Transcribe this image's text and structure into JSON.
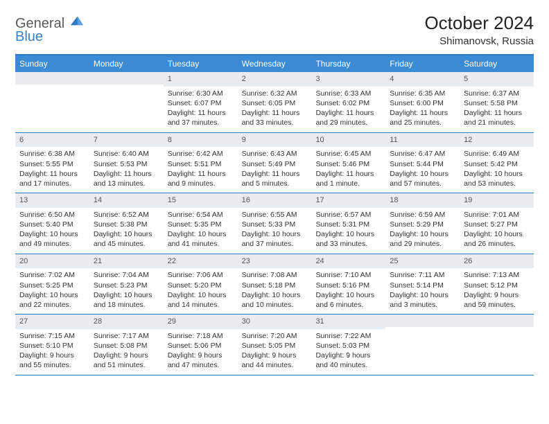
{
  "logo": {
    "general": "General",
    "blue": "Blue"
  },
  "title": "October 2024",
  "location": "Shimanovsk, Russia",
  "colors": {
    "header_bg": "#3b8bd4",
    "border": "#2f78c2",
    "daynum_bg": "#e9edf0",
    "text": "#333333",
    "logo_gray": "#5a5a5a",
    "logo_blue": "#3b7fc4"
  },
  "dow": [
    "Sunday",
    "Monday",
    "Tuesday",
    "Wednesday",
    "Thursday",
    "Friday",
    "Saturday"
  ],
  "weeks": [
    [
      {
        "n": "",
        "lines": []
      },
      {
        "n": "",
        "lines": []
      },
      {
        "n": "1",
        "lines": [
          "Sunrise: 6:30 AM",
          "Sunset: 6:07 PM",
          "Daylight: 11 hours and 37 minutes."
        ]
      },
      {
        "n": "2",
        "lines": [
          "Sunrise: 6:32 AM",
          "Sunset: 6:05 PM",
          "Daylight: 11 hours and 33 minutes."
        ]
      },
      {
        "n": "3",
        "lines": [
          "Sunrise: 6:33 AM",
          "Sunset: 6:02 PM",
          "Daylight: 11 hours and 29 minutes."
        ]
      },
      {
        "n": "4",
        "lines": [
          "Sunrise: 6:35 AM",
          "Sunset: 6:00 PM",
          "Daylight: 11 hours and 25 minutes."
        ]
      },
      {
        "n": "5",
        "lines": [
          "Sunrise: 6:37 AM",
          "Sunset: 5:58 PM",
          "Daylight: 11 hours and 21 minutes."
        ]
      }
    ],
    [
      {
        "n": "6",
        "lines": [
          "Sunrise: 6:38 AM",
          "Sunset: 5:55 PM",
          "Daylight: 11 hours and 17 minutes."
        ]
      },
      {
        "n": "7",
        "lines": [
          "Sunrise: 6:40 AM",
          "Sunset: 5:53 PM",
          "Daylight: 11 hours and 13 minutes."
        ]
      },
      {
        "n": "8",
        "lines": [
          "Sunrise: 6:42 AM",
          "Sunset: 5:51 PM",
          "Daylight: 11 hours and 9 minutes."
        ]
      },
      {
        "n": "9",
        "lines": [
          "Sunrise: 6:43 AM",
          "Sunset: 5:49 PM",
          "Daylight: 11 hours and 5 minutes."
        ]
      },
      {
        "n": "10",
        "lines": [
          "Sunrise: 6:45 AM",
          "Sunset: 5:46 PM",
          "Daylight: 11 hours and 1 minute."
        ]
      },
      {
        "n": "11",
        "lines": [
          "Sunrise: 6:47 AM",
          "Sunset: 5:44 PM",
          "Daylight: 10 hours and 57 minutes."
        ]
      },
      {
        "n": "12",
        "lines": [
          "Sunrise: 6:49 AM",
          "Sunset: 5:42 PM",
          "Daylight: 10 hours and 53 minutes."
        ]
      }
    ],
    [
      {
        "n": "13",
        "lines": [
          "Sunrise: 6:50 AM",
          "Sunset: 5:40 PM",
          "Daylight: 10 hours and 49 minutes."
        ]
      },
      {
        "n": "14",
        "lines": [
          "Sunrise: 6:52 AM",
          "Sunset: 5:38 PM",
          "Daylight: 10 hours and 45 minutes."
        ]
      },
      {
        "n": "15",
        "lines": [
          "Sunrise: 6:54 AM",
          "Sunset: 5:35 PM",
          "Daylight: 10 hours and 41 minutes."
        ]
      },
      {
        "n": "16",
        "lines": [
          "Sunrise: 6:55 AM",
          "Sunset: 5:33 PM",
          "Daylight: 10 hours and 37 minutes."
        ]
      },
      {
        "n": "17",
        "lines": [
          "Sunrise: 6:57 AM",
          "Sunset: 5:31 PM",
          "Daylight: 10 hours and 33 minutes."
        ]
      },
      {
        "n": "18",
        "lines": [
          "Sunrise: 6:59 AM",
          "Sunset: 5:29 PM",
          "Daylight: 10 hours and 29 minutes."
        ]
      },
      {
        "n": "19",
        "lines": [
          "Sunrise: 7:01 AM",
          "Sunset: 5:27 PM",
          "Daylight: 10 hours and 26 minutes."
        ]
      }
    ],
    [
      {
        "n": "20",
        "lines": [
          "Sunrise: 7:02 AM",
          "Sunset: 5:25 PM",
          "Daylight: 10 hours and 22 minutes."
        ]
      },
      {
        "n": "21",
        "lines": [
          "Sunrise: 7:04 AM",
          "Sunset: 5:23 PM",
          "Daylight: 10 hours and 18 minutes."
        ]
      },
      {
        "n": "22",
        "lines": [
          "Sunrise: 7:06 AM",
          "Sunset: 5:20 PM",
          "Daylight: 10 hours and 14 minutes."
        ]
      },
      {
        "n": "23",
        "lines": [
          "Sunrise: 7:08 AM",
          "Sunset: 5:18 PM",
          "Daylight: 10 hours and 10 minutes."
        ]
      },
      {
        "n": "24",
        "lines": [
          "Sunrise: 7:10 AM",
          "Sunset: 5:16 PM",
          "Daylight: 10 hours and 6 minutes."
        ]
      },
      {
        "n": "25",
        "lines": [
          "Sunrise: 7:11 AM",
          "Sunset: 5:14 PM",
          "Daylight: 10 hours and 3 minutes."
        ]
      },
      {
        "n": "26",
        "lines": [
          "Sunrise: 7:13 AM",
          "Sunset: 5:12 PM",
          "Daylight: 9 hours and 59 minutes."
        ]
      }
    ],
    [
      {
        "n": "27",
        "lines": [
          "Sunrise: 7:15 AM",
          "Sunset: 5:10 PM",
          "Daylight: 9 hours and 55 minutes."
        ]
      },
      {
        "n": "28",
        "lines": [
          "Sunrise: 7:17 AM",
          "Sunset: 5:08 PM",
          "Daylight: 9 hours and 51 minutes."
        ]
      },
      {
        "n": "29",
        "lines": [
          "Sunrise: 7:18 AM",
          "Sunset: 5:06 PM",
          "Daylight: 9 hours and 47 minutes."
        ]
      },
      {
        "n": "30",
        "lines": [
          "Sunrise: 7:20 AM",
          "Sunset: 5:05 PM",
          "Daylight: 9 hours and 44 minutes."
        ]
      },
      {
        "n": "31",
        "lines": [
          "Sunrise: 7:22 AM",
          "Sunset: 5:03 PM",
          "Daylight: 9 hours and 40 minutes."
        ]
      },
      {
        "n": "",
        "lines": []
      },
      {
        "n": "",
        "lines": []
      }
    ]
  ]
}
